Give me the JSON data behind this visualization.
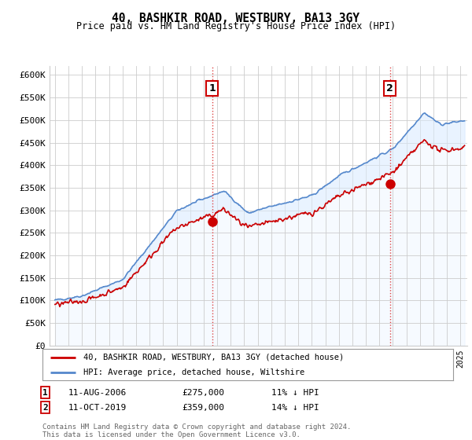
{
  "title": "40, BASHKIR ROAD, WESTBURY, BA13 3GY",
  "subtitle": "Price paid vs. HM Land Registry's House Price Index (HPI)",
  "ylabel_ticks": [
    "£0",
    "£50K",
    "£100K",
    "£150K",
    "£200K",
    "£250K",
    "£300K",
    "£350K",
    "£400K",
    "£450K",
    "£500K",
    "£550K",
    "£600K"
  ],
  "ytick_values": [
    0,
    50000,
    100000,
    150000,
    200000,
    250000,
    300000,
    350000,
    400000,
    450000,
    500000,
    550000,
    600000
  ],
  "ylim": [
    0,
    620000
  ],
  "xlim_start": 1994.6,
  "xlim_end": 2025.5,
  "sale1_x": 2006.617,
  "sale1_y": 275000,
  "sale1_label": "1",
  "sale1_date": "11-AUG-2006",
  "sale1_price": "£275,000",
  "sale1_hpi": "11% ↓ HPI",
  "sale2_x": 2019.783,
  "sale2_y": 359000,
  "sale2_label": "2",
  "sale2_date": "11-OCT-2019",
  "sale2_price": "£359,000",
  "sale2_hpi": "14% ↓ HPI",
  "legend_line1": "40, BASHKIR ROAD, WESTBURY, BA13 3GY (detached house)",
  "legend_line2": "HPI: Average price, detached house, Wiltshire",
  "footer": "Contains HM Land Registry data © Crown copyright and database right 2024.\nThis data is licensed under the Open Government Licence v3.0.",
  "line_color_red": "#cc0000",
  "line_color_blue": "#5588cc",
  "fill_color_blue": "#ddeeff",
  "vline_color": "#dd4444",
  "background_color": "#ffffff",
  "grid_color": "#cccccc"
}
